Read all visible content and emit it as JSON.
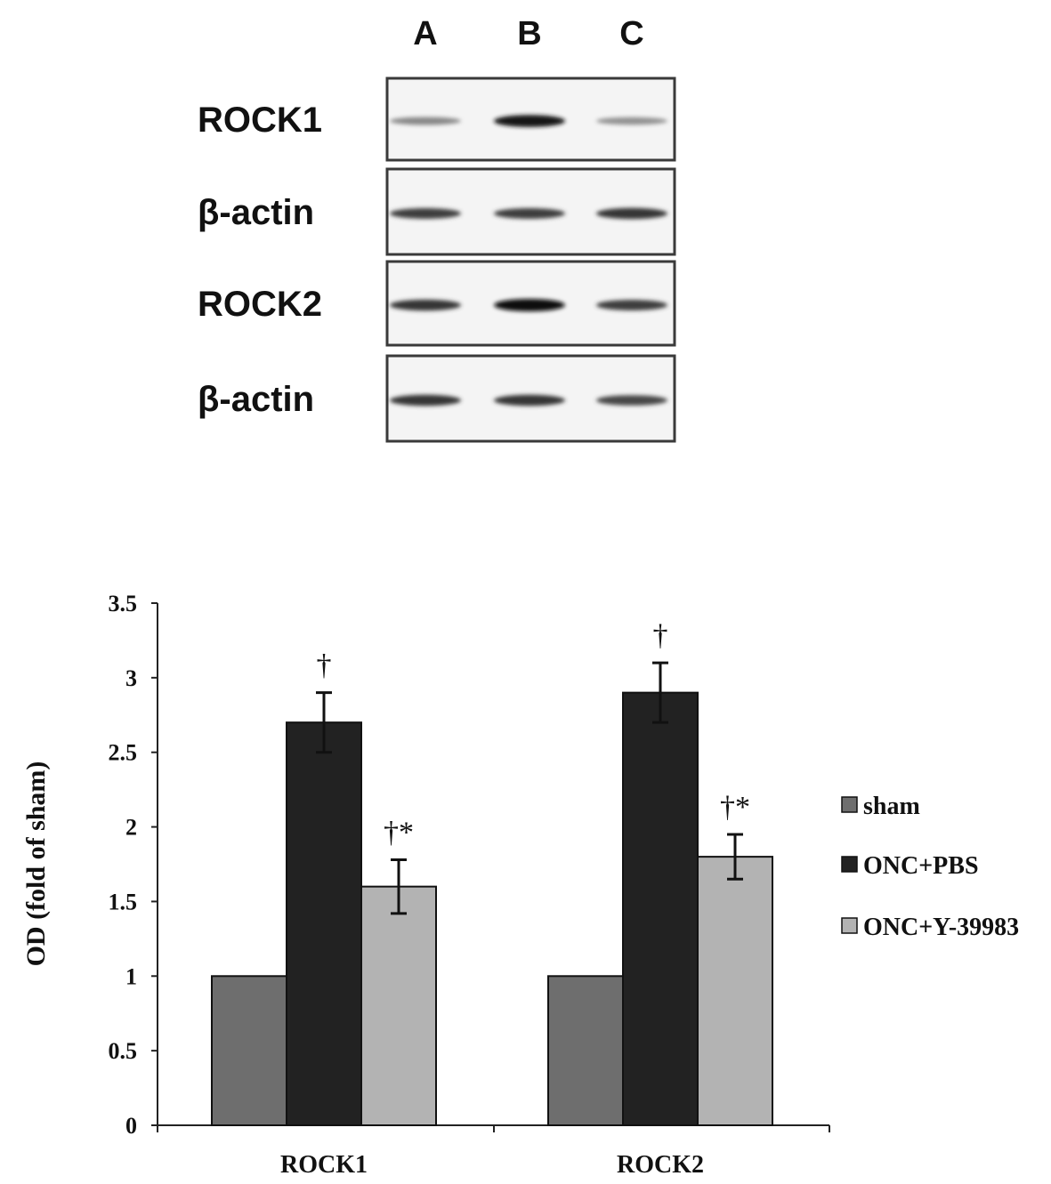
{
  "blot": {
    "lanes": [
      "A",
      "B",
      "C"
    ],
    "rows": [
      {
        "label": "ROCK1",
        "intensity": [
          0.35,
          0.95,
          0.3
        ]
      },
      {
        "label": "β-actin",
        "intensity": [
          0.75,
          0.75,
          0.8
        ]
      },
      {
        "label": "ROCK2",
        "intensity": [
          0.8,
          1.0,
          0.75
        ]
      },
      {
        "label": "β-actin",
        "intensity": [
          0.8,
          0.8,
          0.7
        ]
      }
    ]
  },
  "chart_data": {
    "type": "bar",
    "categories": [
      "ROCK1",
      "ROCK2"
    ],
    "ylabel": "OD (fold of sham)",
    "xlabel": "",
    "ylim": [
      0,
      3.5
    ],
    "yticks": [
      "0",
      "0.5",
      "1",
      "1.5",
      "2",
      "2.5",
      "3",
      "3.5"
    ],
    "legend_position": "right",
    "series": [
      {
        "name": "sham",
        "color": "#6e6e6e",
        "values": [
          1.0,
          1.0
        ],
        "errors": [
          null,
          null
        ],
        "annotations": [
          "",
          ""
        ]
      },
      {
        "name": "ONC+PBS",
        "color": "#222222",
        "values": [
          2.7,
          2.9
        ],
        "errors": [
          0.2,
          0.2
        ],
        "annotations": [
          "†",
          "†"
        ]
      },
      {
        "name": "ONC+Y-39983",
        "color": "#b3b3b3",
        "values": [
          1.6,
          1.8
        ],
        "errors": [
          0.18,
          0.15
        ],
        "annotations": [
          "†*",
          "†*"
        ]
      }
    ]
  }
}
